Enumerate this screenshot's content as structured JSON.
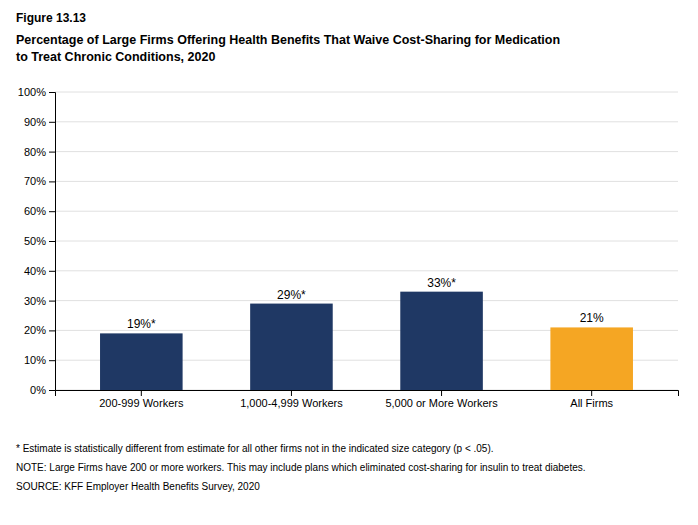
{
  "chart_data": {
    "type": "bar",
    "title": "Figure 13.13",
    "subtitle": "Percentage of Large Firms Offering Health Benefits That Waive Cost-Sharing for Medication\nto Treat Chronic Conditions, 2020",
    "categories": [
      "200-999 Workers",
      "1,000-4,999 Workers",
      "5,000 or More Workers",
      "All Firms"
    ],
    "values": [
      19,
      29,
      33,
      21
    ],
    "value_labels": [
      "19%*",
      "29%*",
      "33%*",
      "21%"
    ],
    "colors": [
      "#1f3864",
      "#1f3864",
      "#1f3864",
      "#f5a623"
    ],
    "ylim": [
      0,
      100
    ],
    "yticks": [
      {
        "value": 0,
        "label": "0%"
      },
      {
        "value": 10,
        "label": "10%"
      },
      {
        "value": 20,
        "label": "20%"
      },
      {
        "value": 30,
        "label": "30%"
      },
      {
        "value": 40,
        "label": "40%"
      },
      {
        "value": 50,
        "label": "50%"
      },
      {
        "value": 60,
        "label": "60%"
      },
      {
        "value": 70,
        "label": "70%"
      },
      {
        "value": 80,
        "label": "80%"
      },
      {
        "value": 90,
        "label": "90%"
      },
      {
        "value": 100,
        "label": "100%"
      }
    ],
    "grid": true,
    "data_labels": true,
    "annotations": [
      "* Estimate is statistically different from estimate for all other firms not in the indicated size category (p < .05).",
      "NOTE: Large Firms have 200 or more workers.  This may include plans which eliminated cost-sharing for insulin to treat diabetes.",
      "SOURCE: KFF Employer Health Benefits Survey, 2020"
    ]
  }
}
